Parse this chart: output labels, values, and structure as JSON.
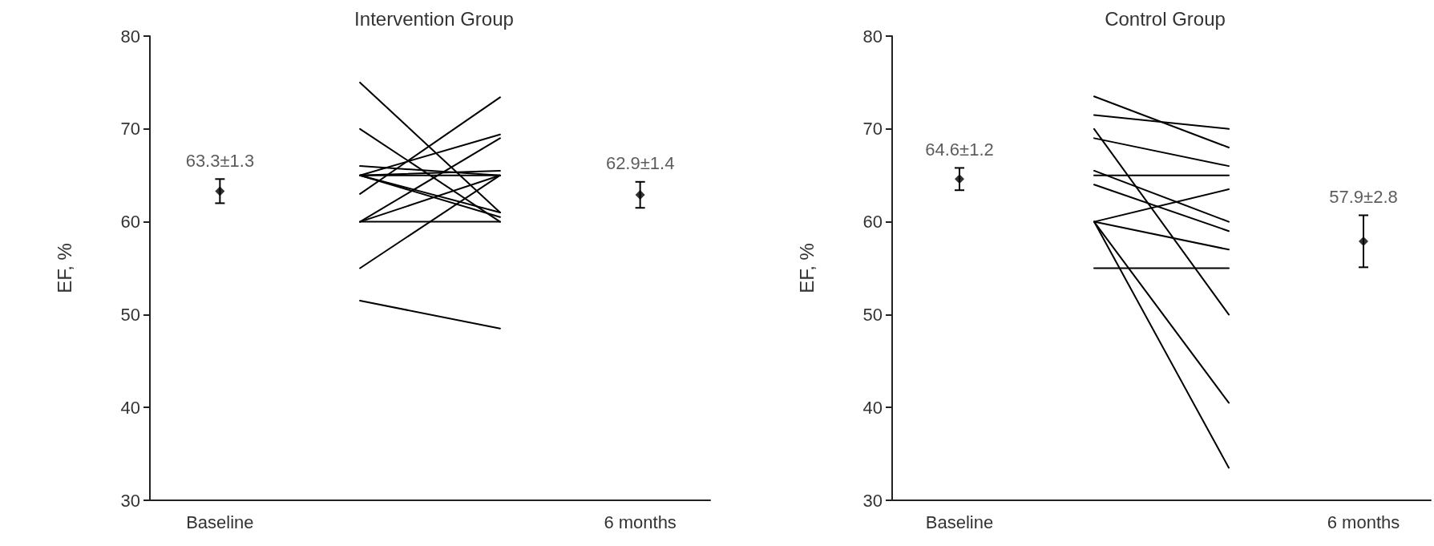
{
  "chart_data": [
    {
      "type": "line",
      "title": "Intervention Group",
      "ylabel": "EF, %",
      "categories": [
        "Baseline",
        null,
        null,
        "6 months"
      ],
      "ylim": [
        30,
        80
      ],
      "yticks": [
        30,
        40,
        50,
        60,
        70,
        80
      ],
      "grid": false,
      "line_style": "solid",
      "series": [
        {
          "color": "#000000",
          "values": [
            null,
            75,
            61,
            null
          ]
        },
        {
          "color": "#000000",
          "values": [
            null,
            70,
            60,
            null
          ]
        },
        {
          "color": "#000000",
          "values": [
            null,
            66,
            65,
            null
          ]
        },
        {
          "color": "#000000",
          "values": [
            null,
            65,
            69.4,
            null
          ]
        },
        {
          "color": "#000000",
          "values": [
            null,
            65,
            65.5,
            null
          ]
        },
        {
          "color": "#000000",
          "values": [
            null,
            65,
            60.5,
            null
          ]
        },
        {
          "color": "#000000",
          "values": [
            null,
            65,
            65,
            null
          ]
        },
        {
          "color": "#000000",
          "values": [
            null,
            65,
            61,
            null
          ]
        },
        {
          "color": "#000000",
          "values": [
            null,
            63,
            73.4,
            null
          ]
        },
        {
          "color": "#000000",
          "values": [
            null,
            60,
            65,
            null
          ]
        },
        {
          "color": "#000000",
          "values": [
            null,
            60,
            60,
            null
          ]
        },
        {
          "color": "#000000",
          "values": [
            null,
            60,
            69,
            null
          ]
        },
        {
          "color": "#000000",
          "values": [
            null,
            55,
            65,
            null
          ]
        },
        {
          "color": "#000000",
          "values": [
            null,
            51.5,
            48.5,
            null
          ]
        },
        {
          "type": "scatter",
          "marker": "diamond",
          "color": "#000000",
          "values": [
            63.3,
            null,
            null,
            62.9
          ],
          "errors": [
            1.3,
            null,
            null,
            1.4
          ],
          "value_labels": [
            "63.3±1.3",
            null,
            null,
            "62.9±1.4"
          ]
        }
      ]
    },
    {
      "type": "line",
      "title": "Control Group",
      "ylabel": "EF, %",
      "categories": [
        "Baseline",
        null,
        null,
        "6 months"
      ],
      "ylim": [
        30,
        80
      ],
      "yticks": [
        30,
        40,
        50,
        60,
        70,
        80
      ],
      "grid": false,
      "line_style": "solid",
      "series": [
        {
          "color": "#000000",
          "values": [
            null,
            73.5,
            68,
            null
          ]
        },
        {
          "color": "#000000",
          "values": [
            null,
            71.5,
            70,
            null
          ]
        },
        {
          "color": "#000000",
          "values": [
            null,
            70,
            50,
            null
          ]
        },
        {
          "color": "#000000",
          "values": [
            null,
            69,
            66,
            null
          ]
        },
        {
          "color": "#000000",
          "values": [
            null,
            65,
            65,
            null
          ]
        },
        {
          "color": "#000000",
          "values": [
            null,
            65.5,
            60,
            null
          ]
        },
        {
          "color": "#000000",
          "values": [
            null,
            64,
            59,
            null
          ]
        },
        {
          "color": "#000000",
          "values": [
            null,
            60,
            63.5,
            null
          ]
        },
        {
          "color": "#000000",
          "values": [
            null,
            60,
            57,
            null
          ]
        },
        {
          "color": "#000000",
          "values": [
            null,
            60,
            40.5,
            null
          ]
        },
        {
          "color": "#000000",
          "values": [
            null,
            60,
            33.5,
            null
          ]
        },
        {
          "color": "#000000",
          "values": [
            null,
            55,
            55,
            null
          ]
        },
        {
          "type": "scatter",
          "marker": "diamond",
          "color": "#000000",
          "values": [
            64.6,
            null,
            null,
            57.9
          ],
          "errors": [
            1.2,
            null,
            null,
            2.8
          ],
          "value_labels": [
            "64.6±1.2",
            null,
            null,
            "57.9±2.8"
          ]
        }
      ]
    }
  ]
}
